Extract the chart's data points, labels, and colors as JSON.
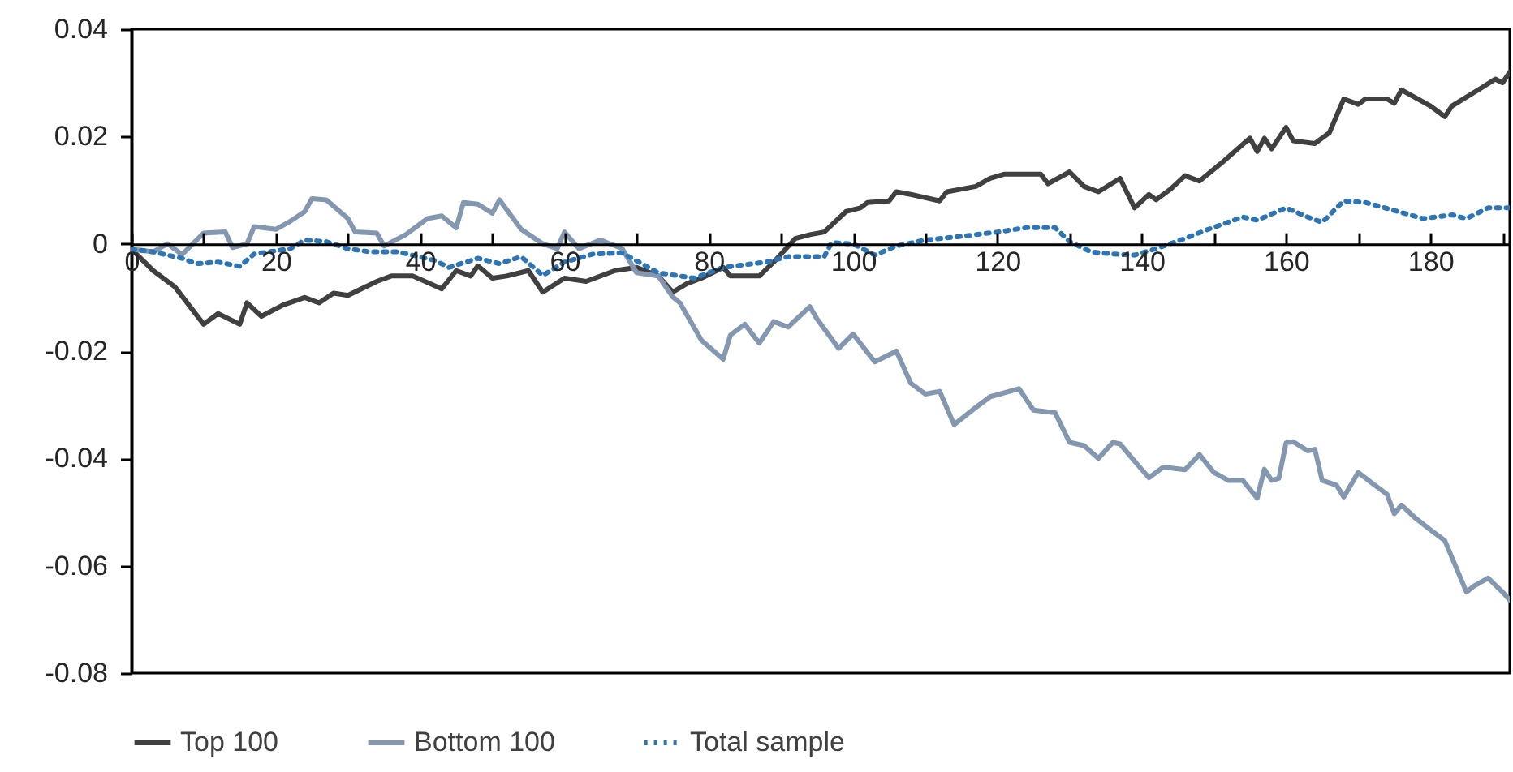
{
  "chart_data": {
    "type": "line",
    "xlim": [
      0,
      191
    ],
    "xticks": [
      0,
      {
        "value": 10,
        "label": null
      },
      20,
      {
        "value": 30,
        "label": null
      },
      40,
      {
        "value": 50,
        "label": null
      },
      60,
      {
        "value": 70,
        "label": null
      },
      80,
      {
        "value": 90,
        "label": null
      },
      100,
      {
        "value": 110,
        "label": null
      },
      120,
      {
        "value": 130,
        "label": null
      },
      140,
      {
        "value": 150,
        "label": null
      },
      160,
      {
        "value": 170,
        "label": null
      },
      180,
      {
        "value": 190,
        "label": null
      }
    ],
    "ylim": [
      -0.08,
      0.04
    ],
    "yticks": [
      -0.08,
      -0.06,
      -0.04,
      -0.02,
      0,
      0.02,
      0.04
    ],
    "grid": false,
    "legend": "bottom",
    "series": [
      {
        "name": "Top 100",
        "color": "#404040",
        "line_style": "solid",
        "x": [
          0,
          3,
          6,
          10,
          12,
          15,
          16,
          18,
          21,
          24,
          26,
          28,
          30,
          34,
          36,
          39,
          43,
          45,
          47,
          48,
          50,
          52,
          55,
          57,
          60,
          63,
          67,
          70,
          73,
          75,
          77,
          79,
          82,
          83,
          87,
          89,
          92,
          94,
          96,
          99,
          101,
          102,
          105,
          106,
          108,
          112,
          113,
          117,
          119,
          121,
          126,
          127,
          130,
          132,
          134,
          137,
          139,
          141,
          142,
          144,
          146,
          148,
          151,
          155,
          156,
          157,
          158,
          160,
          161,
          164,
          166,
          168,
          170,
          171,
          174,
          175,
          176,
          180,
          182,
          183,
          187,
          189,
          190,
          191
        ],
        "values": [
          -0.001,
          -0.005,
          -0.008,
          -0.015,
          -0.013,
          -0.015,
          -0.011,
          -0.0135,
          -0.0114,
          -0.01,
          -0.011,
          -0.0092,
          -0.0096,
          -0.007,
          -0.006,
          -0.006,
          -0.0084,
          -0.005,
          -0.006,
          -0.0041,
          -0.0064,
          -0.006,
          -0.005,
          -0.009,
          -0.0064,
          -0.007,
          -0.005,
          -0.0044,
          -0.006,
          -0.009,
          -0.0074,
          -0.0064,
          -0.0044,
          -0.006,
          -0.006,
          -0.0034,
          0.001,
          0.0017,
          0.0022,
          0.006,
          0.0067,
          0.0077,
          0.008,
          0.0097,
          0.0092,
          0.008,
          0.0097,
          0.0107,
          0.0122,
          0.013,
          0.013,
          0.0112,
          0.0134,
          0.0107,
          0.0097,
          0.0122,
          0.0067,
          0.0092,
          0.0082,
          0.0102,
          0.0127,
          0.0117,
          0.015,
          0.0197,
          0.0172,
          0.0197,
          0.0177,
          0.0217,
          0.0192,
          0.0187,
          0.0207,
          0.027,
          0.026,
          0.027,
          0.027,
          0.0262,
          0.0287,
          0.0257,
          0.0237,
          0.0257,
          0.029,
          0.0307,
          0.03,
          0.032
        ]
      },
      {
        "name": "Bottom 100",
        "color": "#8497b0",
        "line_style": "solid",
        "x": [
          0,
          3,
          5,
          7,
          10,
          13,
          14,
          16,
          17,
          20,
          22,
          24,
          25,
          27,
          30,
          31,
          34,
          35,
          38,
          41,
          43,
          45,
          46,
          48,
          50,
          51,
          54,
          57,
          59,
          60,
          62,
          65,
          68,
          70,
          73,
          75,
          76,
          79,
          82,
          83,
          85,
          87,
          89,
          91,
          94,
          95,
          98,
          100,
          103,
          106,
          108,
          110,
          112,
          114,
          117,
          119,
          123,
          125,
          128,
          130,
          132,
          134,
          136,
          137,
          139,
          141,
          143,
          146,
          148,
          150,
          152,
          154,
          156,
          157,
          158,
          159,
          160,
          161,
          163,
          164,
          165,
          167,
          168,
          170,
          172,
          174,
          175,
          176,
          178,
          180,
          182,
          185,
          186,
          188,
          190,
          191
        ],
        "values": [
          -0.001,
          -0.0015,
          0,
          -0.002,
          0.002,
          0.0022,
          -0.0007,
          0,
          0.0032,
          0.0027,
          0.0042,
          0.006,
          0.0084,
          0.0082,
          0.0047,
          0.0022,
          0.002,
          -0.0004,
          0.0017,
          0.0047,
          0.0052,
          0.003,
          0.0077,
          0.0074,
          0.0057,
          0.0082,
          0.0027,
          0,
          -0.0009,
          0.0022,
          -0.0009,
          0.0007,
          -0.0009,
          -0.0054,
          -0.006,
          -0.0099,
          -0.011,
          -0.018,
          -0.0215,
          -0.017,
          -0.015,
          -0.0185,
          -0.0145,
          -0.0155,
          -0.0117,
          -0.014,
          -0.0195,
          -0.0168,
          -0.022,
          -0.02,
          -0.026,
          -0.028,
          -0.0275,
          -0.0337,
          -0.0305,
          -0.0285,
          -0.027,
          -0.031,
          -0.0315,
          -0.037,
          -0.0376,
          -0.04,
          -0.037,
          -0.0373,
          -0.0405,
          -0.0436,
          -0.0416,
          -0.0421,
          -0.0393,
          -0.0426,
          -0.0441,
          -0.0441,
          -0.0474,
          -0.042,
          -0.0441,
          -0.0437,
          -0.0371,
          -0.0369,
          -0.0386,
          -0.0383,
          -0.0441,
          -0.045,
          -0.0472,
          -0.0426,
          -0.0447,
          -0.0467,
          -0.0503,
          -0.0487,
          -0.0512,
          -0.0533,
          -0.0553,
          -0.0649,
          -0.0638,
          -0.0623,
          -0.0649,
          -0.0664
        ]
      },
      {
        "name": "Total sample",
        "color": "#2e75b6",
        "line_style": "dotted",
        "x": [
          0,
          3,
          5,
          7,
          9,
          12,
          15,
          17,
          19,
          22,
          24,
          27,
          30,
          33,
          37,
          42,
          44,
          48,
          51,
          54,
          57,
          60,
          64,
          68,
          73,
          78,
          82,
          88,
          91,
          96,
          97,
          100,
          103,
          106,
          110,
          115,
          120,
          124,
          128,
          130,
          133,
          136,
          139,
          142,
          146,
          149,
          154,
          156,
          160,
          163,
          165,
          168,
          171,
          175,
          179,
          183,
          185,
          188,
          191
        ],
        "values": [
          -0.001,
          -0.0015,
          -0.0021,
          -0.0027,
          -0.0037,
          -0.0034,
          -0.0042,
          -0.0019,
          -0.0015,
          -0.0009,
          0.0007,
          0.0004,
          -0.0009,
          -0.0015,
          -0.0015,
          -0.0031,
          -0.0044,
          -0.0027,
          -0.0037,
          -0.0024,
          -0.0059,
          -0.0034,
          -0.0019,
          -0.0017,
          -0.0054,
          -0.0064,
          -0.0044,
          -0.0034,
          -0.0024,
          -0.0024,
          0.0002,
          0,
          -0.0021,
          -0.0004,
          0.0007,
          0.0014,
          0.0022,
          0.003,
          0.003,
          0.0004,
          -0.0015,
          -0.0019,
          -0.0021,
          -0.0009,
          0.001,
          0.0026,
          0.005,
          0.0044,
          0.0067,
          0.005,
          0.004,
          0.008,
          0.0077,
          0.0062,
          0.0047,
          0.0054,
          0.0047,
          0.0067,
          0.0067
        ]
      }
    ]
  }
}
